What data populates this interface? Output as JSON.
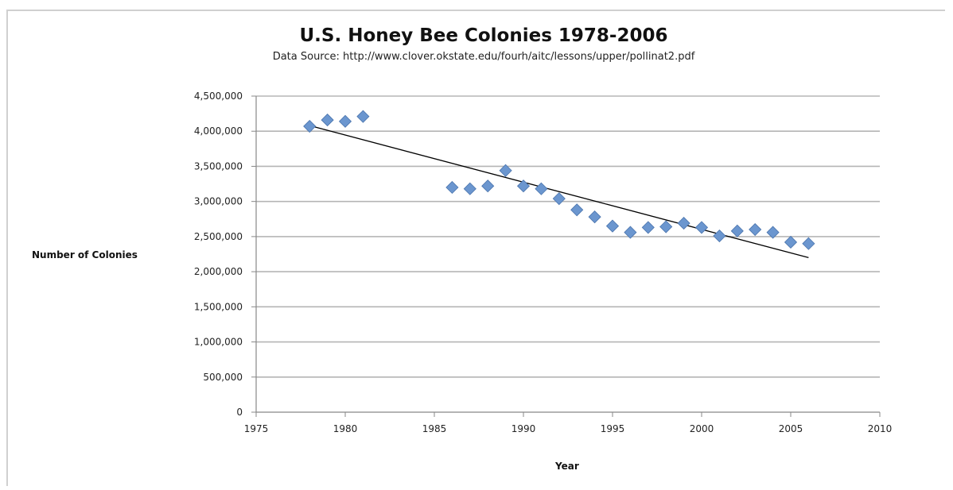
{
  "chart_data": {
    "type": "scatter",
    "title": "U.S. Honey Bee Colonies 1978-2006",
    "subtitle": "Data Source: http://www.clover.okstate.edu/fourh/aitc/lessons/upper/pollinat2.pdf",
    "xlabel": "Year",
    "ylabel": "Number of Colonies",
    "xlim": [
      1975,
      2010
    ],
    "ylim": [
      0,
      4500000
    ],
    "x_ticks": [
      1975,
      1980,
      1985,
      1990,
      1995,
      2000,
      2005,
      2010
    ],
    "x_tick_labels": [
      "1975",
      "1980",
      "1985",
      "1990",
      "1995",
      "2000",
      "2005",
      "2010"
    ],
    "y_ticks": [
      0,
      500000,
      1000000,
      1500000,
      2000000,
      2500000,
      3000000,
      3500000,
      4000000,
      4500000
    ],
    "y_tick_labels": [
      "0",
      "500,000",
      "1,000,000",
      "1,500,000",
      "2,000,000",
      "2,500,000",
      "3,000,000",
      "3,500,000",
      "4,000,000",
      "4,500,000"
    ],
    "grid": true,
    "series": [
      {
        "marker": "diamond",
        "color": "#6b96cf",
        "x": [
          1978,
          1979,
          1980,
          1981,
          1986,
          1987,
          1988,
          1989,
          1990,
          1991,
          1992,
          1993,
          1994,
          1995,
          1996,
          1997,
          1998,
          1999,
          2000,
          2001,
          2002,
          2003,
          2004,
          2005,
          2006
        ],
        "y": [
          4070000,
          4160000,
          4140000,
          4210000,
          3200000,
          3180000,
          3220000,
          3440000,
          3220000,
          3180000,
          3040000,
          2880000,
          2780000,
          2650000,
          2560000,
          2630000,
          2640000,
          2690000,
          2630000,
          2510000,
          2580000,
          2600000,
          2560000,
          2420000,
          2400000
        ]
      }
    ],
    "trendline": {
      "type": "linear",
      "color": "#000000",
      "x": [
        1978,
        2006
      ],
      "y": [
        4080000,
        2200000
      ]
    }
  }
}
